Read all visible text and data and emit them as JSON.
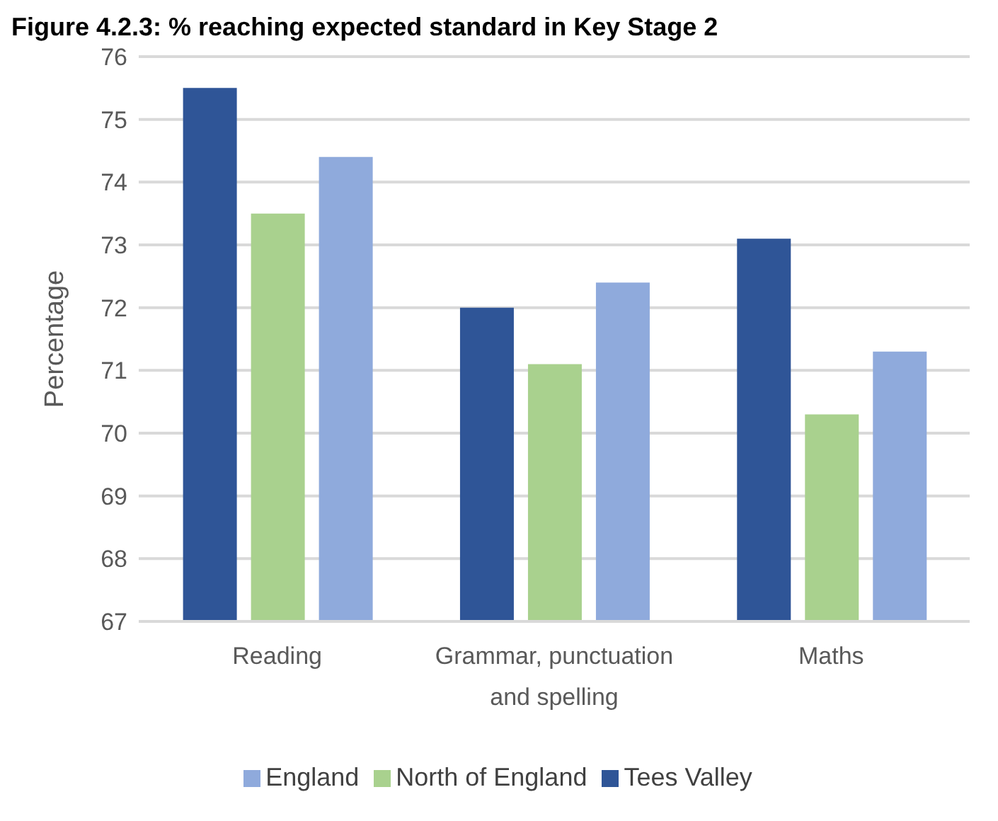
{
  "chart_data": {
    "type": "bar",
    "title": "Figure 4.2.3: % reaching expected standard in Key Stage 2",
    "ylabel": "Percentage",
    "categories": [
      "Reading",
      "Grammar, punctuation and spelling",
      "Maths"
    ],
    "series": [
      {
        "name": "Tees Valley",
        "color": "#2f5597",
        "values": [
          75.5,
          72.0,
          73.1
        ]
      },
      {
        "name": "North of England",
        "color": "#a9d18e",
        "values": [
          73.5,
          71.1,
          70.3
        ]
      },
      {
        "name": "England",
        "color": "#8faadc",
        "values": [
          74.4,
          72.4,
          71.3
        ]
      }
    ],
    "ylim": [
      67,
      76
    ],
    "yticks": [
      67,
      68,
      69,
      70,
      71,
      72,
      73,
      74,
      75,
      76
    ],
    "grid": "y",
    "legend": "bottom"
  }
}
